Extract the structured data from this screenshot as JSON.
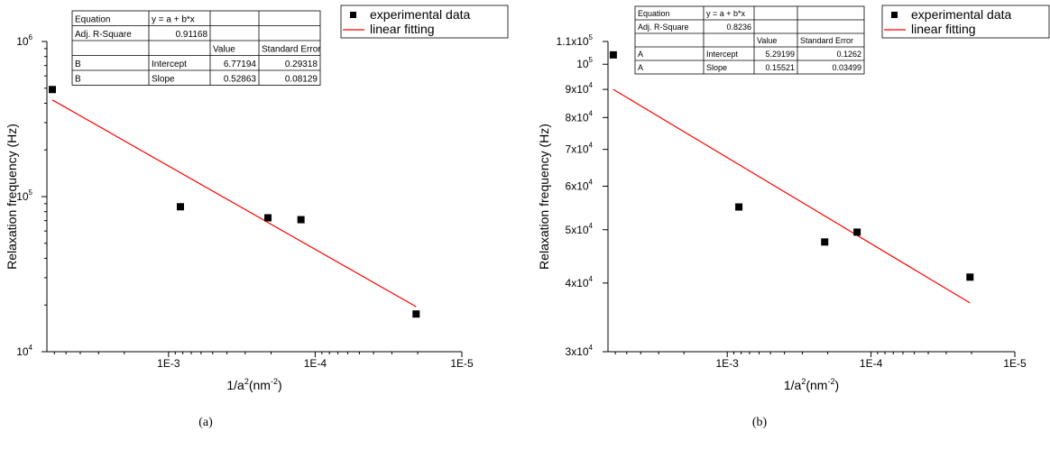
{
  "chart_data": [
    {
      "type": "scatter",
      "panel_label": "(a)",
      "xlabel": "1/a",
      "xlabel_sup": "2",
      "xlabel_unit_open": "(nm",
      "xlabel_unit_sup": "-2",
      "xlabel_unit_close": ")",
      "ylabel": "Relaxation frequency (Hz)",
      "x_scale": "log",
      "x_reversed": true,
      "y_scale": "log",
      "xlim": [
        0.00675,
        1e-05
      ],
      "ylim": [
        10000,
        1000000
      ],
      "x_ticks": [
        {
          "value": 0.001,
          "label": "1E-3"
        },
        {
          "value": 0.0001,
          "label": "1E-4"
        },
        {
          "value": 1e-05,
          "label": "1E-5"
        }
      ],
      "y_ticks": [
        {
          "value": 10000,
          "mant": "10",
          "exp": "4"
        },
        {
          "value": 100000,
          "mant": "10",
          "exp": "5"
        },
        {
          "value": 1000000,
          "mant": "10",
          "exp": "6"
        }
      ],
      "series": [
        {
          "name": "experimental data",
          "marker": "square",
          "color": "#000000",
          "x": [
            0.0062,
            0.00083,
            0.00021,
            0.000125,
            2.05e-05
          ],
          "y": [
            490000,
            86000,
            73000,
            71000,
            17500
          ]
        },
        {
          "name": "linear fitting",
          "kind": "line",
          "color": "#ff0000",
          "x": [
            0.0062,
            2.05e-05
          ],
          "y": [
            420000,
            19500
          ]
        }
      ],
      "legend_position": "outside-top-right",
      "fit_table": {
        "rows": [
          [
            "Equation",
            "y = a + b*x",
            "",
            ""
          ],
          [
            "Adj. R-Square",
            "0.91168",
            "",
            ""
          ],
          [
            "",
            "",
            "Value",
            "Standard Error"
          ],
          [
            "B",
            "Intercept",
            "6.77194",
            "0.29318"
          ],
          [
            "B",
            "Slope",
            "0.52863",
            "0.08129"
          ]
        ]
      }
    },
    {
      "type": "scatter",
      "panel_label": "(b)",
      "xlabel": "1/a",
      "xlabel_sup": "2",
      "xlabel_unit_open": "(nm",
      "xlabel_unit_sup": "-2",
      "xlabel_unit_close": ")",
      "ylabel": "Relaxation frequency (Hz)",
      "x_scale": "log",
      "x_reversed": true,
      "y_scale": "log",
      "xlim": [
        0.00675,
        1e-05
      ],
      "ylim": [
        30000,
        110000
      ],
      "x_ticks": [
        {
          "value": 0.001,
          "label": "1E-3"
        },
        {
          "value": 0.0001,
          "label": "1E-4"
        },
        {
          "value": 1e-05,
          "label": "1E-5"
        }
      ],
      "y_ticks": [
        {
          "value": 30000,
          "mant": "3x10",
          "exp": "4"
        },
        {
          "value": 40000,
          "mant": "4x10",
          "exp": "4"
        },
        {
          "value": 50000,
          "mant": "5x10",
          "exp": "4"
        },
        {
          "value": 60000,
          "mant": "6x10",
          "exp": "4"
        },
        {
          "value": 70000,
          "mant": "7x10",
          "exp": "4"
        },
        {
          "value": 80000,
          "mant": "8x10",
          "exp": "4"
        },
        {
          "value": 90000,
          "mant": "9x10",
          "exp": "4"
        },
        {
          "value": 100000,
          "mant": "10",
          "exp": "5"
        },
        {
          "value": 110000,
          "mant": "1.1x10",
          "exp": "5"
        }
      ],
      "series": [
        {
          "name": "experimental data",
          "marker": "square",
          "color": "#000000",
          "x": [
            0.0062,
            0.00083,
            0.00021,
            0.000125,
            2.05e-05
          ],
          "y": [
            104000,
            55000,
            47500,
            49500,
            41000
          ]
        },
        {
          "name": "linear fitting",
          "kind": "line",
          "color": "#ff0000",
          "x": [
            0.0062,
            2.05e-05
          ],
          "y": [
            90000,
            36800
          ]
        }
      ],
      "legend_position": "outside-top-right",
      "fit_table": {
        "rows": [
          [
            "Equation",
            "y = a + b*x",
            "",
            ""
          ],
          [
            "Adj. R-Square",
            "0.8236",
            "",
            ""
          ],
          [
            "",
            "",
            "Value",
            "Standard Error"
          ],
          [
            "A",
            "Intercept",
            "5.29199",
            "0.1262"
          ],
          [
            "A",
            "Slope",
            "0.15521",
            "0.03499"
          ]
        ]
      }
    }
  ]
}
